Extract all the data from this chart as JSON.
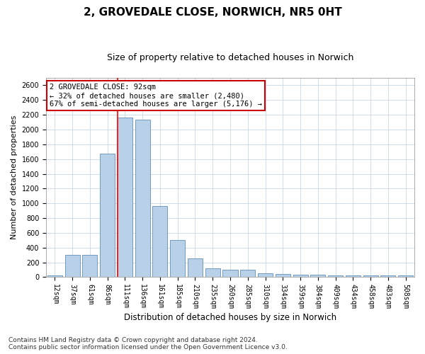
{
  "title1": "2, GROVEDALE CLOSE, NORWICH, NR5 0HT",
  "title2": "Size of property relative to detached houses in Norwich",
  "xlabel": "Distribution of detached houses by size in Norwich",
  "ylabel": "Number of detached properties",
  "bar_labels": [
    "12sqm",
    "37sqm",
    "61sqm",
    "86sqm",
    "111sqm",
    "136sqm",
    "161sqm",
    "185sqm",
    "210sqm",
    "235sqm",
    "260sqm",
    "285sqm",
    "310sqm",
    "334sqm",
    "359sqm",
    "384sqm",
    "409sqm",
    "434sqm",
    "458sqm",
    "483sqm",
    "508sqm"
  ],
  "bar_values": [
    25,
    300,
    300,
    1670,
    2160,
    2135,
    960,
    500,
    250,
    120,
    100,
    100,
    50,
    40,
    30,
    30,
    20,
    20,
    20,
    20,
    25
  ],
  "bar_color": "#b8d0e8",
  "bar_edge_color": "#6090b8",
  "red_line_index": 4,
  "annotation_text": "2 GROVEDALE CLOSE: 92sqm\n← 32% of detached houses are smaller (2,480)\n67% of semi-detached houses are larger (5,176) →",
  "annotation_box_color": "#ffffff",
  "annotation_box_edge": "#cc0000",
  "ylim": [
    0,
    2700
  ],
  "yticks": [
    0,
    200,
    400,
    600,
    800,
    1000,
    1200,
    1400,
    1600,
    1800,
    2000,
    2200,
    2400,
    2600
  ],
  "footnote1": "Contains HM Land Registry data © Crown copyright and database right 2024.",
  "footnote2": "Contains public sector information licensed under the Open Government Licence v3.0.",
  "background_color": "#ffffff",
  "grid_color": "#c8d8e8",
  "title1_fontsize": 11,
  "title2_fontsize": 9,
  "xlabel_fontsize": 8.5,
  "ylabel_fontsize": 8,
  "tick_fontsize": 7,
  "annotation_fontsize": 7.5,
  "footnote_fontsize": 6.5
}
